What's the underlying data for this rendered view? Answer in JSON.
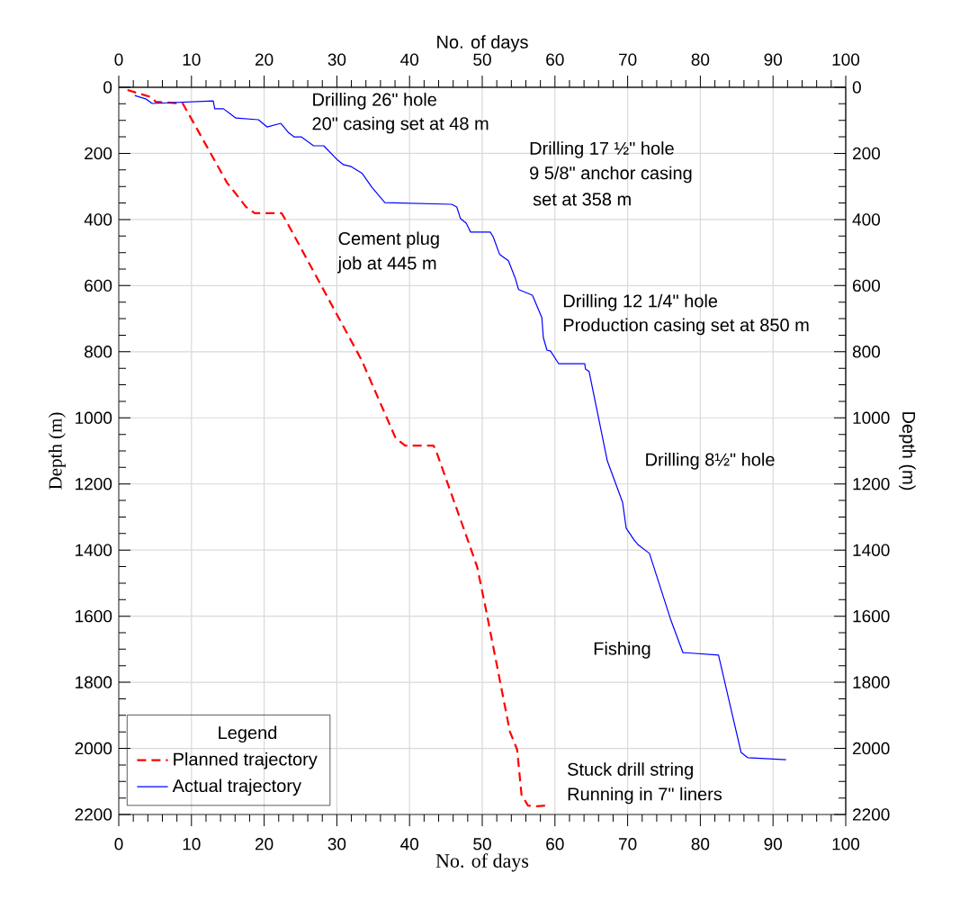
{
  "chart_data": {
    "type": "line",
    "xlabel": "No. of days",
    "x2label": "No. of days",
    "ylabel": "Depth (m)",
    "y2label": "Depth (m)",
    "xlim": [
      0,
      100
    ],
    "x2lim": [
      0,
      100
    ],
    "ylim": [
      2200,
      0
    ],
    "y2lim": [
      2200,
      0
    ],
    "xticks": [
      0,
      {
        "value": 2,
        "label": null
      },
      {
        "value": 4,
        "label": null
      },
      {
        "value": 6,
        "label": null
      },
      {
        "value": 8,
        "label": null
      },
      10,
      {
        "value": 12,
        "label": null
      },
      {
        "value": 14,
        "label": null
      },
      {
        "value": 16,
        "label": null
      },
      {
        "value": 18,
        "label": null
      },
      20,
      {
        "value": 22,
        "label": null
      },
      {
        "value": 24,
        "label": null
      },
      {
        "value": 26,
        "label": null
      },
      {
        "value": 28,
        "label": null
      },
      30,
      {
        "value": 32,
        "label": null
      },
      {
        "value": 34,
        "label": null
      },
      {
        "value": 36,
        "label": null
      },
      {
        "value": 38,
        "label": null
      },
      40,
      {
        "value": 42,
        "label": null
      },
      {
        "value": 44,
        "label": null
      },
      {
        "value": 46,
        "label": null
      },
      {
        "value": 48,
        "label": null
      },
      50,
      {
        "value": 52,
        "label": null
      },
      {
        "value": 54,
        "label": null
      },
      {
        "value": 56,
        "label": null
      },
      {
        "value": 58,
        "label": null
      },
      60,
      {
        "value": 62,
        "label": null
      },
      {
        "value": 64,
        "label": null
      },
      {
        "value": 66,
        "label": null
      },
      {
        "value": 68,
        "label": null
      },
      70,
      {
        "value": 72,
        "label": null
      },
      {
        "value": 74,
        "label": null
      },
      {
        "value": 76,
        "label": null
      },
      {
        "value": 78,
        "label": null
      },
      80,
      {
        "value": 82,
        "label": null
      },
      {
        "value": 84,
        "label": null
      },
      {
        "value": 86,
        "label": null
      },
      {
        "value": 88,
        "label": null
      },
      90,
      {
        "value": 92,
        "label": null
      },
      {
        "value": 94,
        "label": null
      },
      {
        "value": 96,
        "label": null
      },
      {
        "value": 98,
        "label": null
      },
      100
    ],
    "x2ticks": [
      0,
      {
        "value": 2,
        "label": null
      },
      {
        "value": 4,
        "label": null
      },
      {
        "value": 6,
        "label": null
      },
      {
        "value": 8,
        "label": null
      },
      10,
      {
        "value": 12,
        "label": null
      },
      {
        "value": 14,
        "label": null
      },
      {
        "value": 16,
        "label": null
      },
      {
        "value": 18,
        "label": null
      },
      20,
      {
        "value": 22,
        "label": null
      },
      {
        "value": 24,
        "label": null
      },
      {
        "value": 26,
        "label": null
      },
      {
        "value": 28,
        "label": null
      },
      30,
      {
        "value": 32,
        "label": null
      },
      {
        "value": 34,
        "label": null
      },
      {
        "value": 36,
        "label": null
      },
      {
        "value": 38,
        "label": null
      },
      40,
      {
        "value": 42,
        "label": null
      },
      {
        "value": 44,
        "label": null
      },
      {
        "value": 46,
        "label": null
      },
      {
        "value": 48,
        "label": null
      },
      50,
      {
        "value": 52,
        "label": null
      },
      {
        "value": 54,
        "label": null
      },
      {
        "value": 56,
        "label": null
      },
      {
        "value": 58,
        "label": null
      },
      60,
      {
        "value": 62,
        "label": null
      },
      {
        "value": 64,
        "label": null
      },
      {
        "value": 66,
        "label": null
      },
      {
        "value": 68,
        "label": null
      },
      70,
      {
        "value": 72,
        "label": null
      },
      {
        "value": 74,
        "label": null
      },
      {
        "value": 76,
        "label": null
      },
      {
        "value": 78,
        "label": null
      },
      80,
      {
        "value": 82,
        "label": null
      },
      {
        "value": 84,
        "label": null
      },
      {
        "value": 86,
        "label": null
      },
      {
        "value": 88,
        "label": null
      },
      90,
      {
        "value": 92,
        "label": null
      },
      {
        "value": 94,
        "label": null
      },
      {
        "value": 96,
        "label": null
      },
      {
        "value": 98,
        "label": null
      },
      100
    ],
    "yticks": [
      0,
      {
        "value": 50,
        "label": null
      },
      {
        "value": 100,
        "label": null
      },
      {
        "value": 150,
        "label": null
      },
      200,
      {
        "value": 250,
        "label": null
      },
      {
        "value": 300,
        "label": null
      },
      {
        "value": 350,
        "label": null
      },
      400,
      {
        "value": 450,
        "label": null
      },
      {
        "value": 500,
        "label": null
      },
      {
        "value": 550,
        "label": null
      },
      600,
      {
        "value": 650,
        "label": null
      },
      {
        "value": 700,
        "label": null
      },
      {
        "value": 750,
        "label": null
      },
      800,
      {
        "value": 850,
        "label": null
      },
      {
        "value": 900,
        "label": null
      },
      {
        "value": 950,
        "label": null
      },
      1000,
      {
        "value": 1050,
        "label": null
      },
      {
        "value": 1100,
        "label": null
      },
      {
        "value": 1150,
        "label": null
      },
      1200,
      {
        "value": 1250,
        "label": null
      },
      {
        "value": 1300,
        "label": null
      },
      {
        "value": 1350,
        "label": null
      },
      1400,
      {
        "value": 1450,
        "label": null
      },
      {
        "value": 1500,
        "label": null
      },
      {
        "value": 1550,
        "label": null
      },
      1600,
      {
        "value": 1650,
        "label": null
      },
      {
        "value": 1700,
        "label": null
      },
      {
        "value": 1750,
        "label": null
      },
      1800,
      {
        "value": 1850,
        "label": null
      },
      {
        "value": 1900,
        "label": null
      },
      {
        "value": 1950,
        "label": null
      },
      2000,
      {
        "value": 2050,
        "label": null
      },
      {
        "value": 2100,
        "label": null
      },
      {
        "value": 2150,
        "label": null
      },
      2200
    ],
    "y2ticks": [
      0,
      {
        "value": 50,
        "label": null
      },
      {
        "value": 100,
        "label": null
      },
      {
        "value": 150,
        "label": null
      },
      200,
      {
        "value": 250,
        "label": null
      },
      {
        "value": 300,
        "label": null
      },
      {
        "value": 350,
        "label": null
      },
      400,
      {
        "value": 450,
        "label": null
      },
      {
        "value": 500,
        "label": null
      },
      {
        "value": 550,
        "label": null
      },
      600,
      {
        "value": 650,
        "label": null
      },
      {
        "value": 700,
        "label": null
      },
      {
        "value": 750,
        "label": null
      },
      800,
      {
        "value": 850,
        "label": null
      },
      {
        "value": 900,
        "label": null
      },
      {
        "value": 950,
        "label": null
      },
      1000,
      {
        "value": 1050,
        "label": null
      },
      {
        "value": 1100,
        "label": null
      },
      {
        "value": 1150,
        "label": null
      },
      1200,
      {
        "value": 1250,
        "label": null
      },
      {
        "value": 1300,
        "label": null
      },
      {
        "value": 1350,
        "label": null
      },
      1400,
      {
        "value": 1450,
        "label": null
      },
      {
        "value": 1500,
        "label": null
      },
      {
        "value": 1550,
        "label": null
      },
      1600,
      {
        "value": 1650,
        "label": null
      },
      {
        "value": 1700,
        "label": null
      },
      {
        "value": 1750,
        "label": null
      },
      1800,
      {
        "value": 1850,
        "label": null
      },
      {
        "value": 1900,
        "label": null
      },
      {
        "value": 1950,
        "label": null
      },
      2000,
      {
        "value": 2050,
        "label": null
      },
      {
        "value": 2100,
        "label": null
      },
      {
        "value": 2150,
        "label": null
      },
      2200
    ],
    "grid": true,
    "legend": "bottom left",
    "legend_title": "Legend",
    "series": [
      {
        "name": "Planned trajectory",
        "color": "#ff0000",
        "line_style": "dashed",
        "x": [
          1.2,
          4.5,
          5.1,
          8.8,
          9.7,
          14.9,
          15.6,
          17.5,
          18.7,
          22.4,
          23.0,
          33.4,
          38.1,
          39.4,
          43.3,
          43.7,
          48.0,
          49.3,
          50.5,
          53.8,
          54.8,
          55.4,
          56.3,
          57.5,
          58.9
        ],
        "values": [
          8,
          30,
          44,
          49,
          84,
          289,
          308,
          362,
          381,
          381,
          403,
          825,
          1062,
          1084,
          1084,
          1103,
          1369,
          1451,
          1579,
          1949,
          2004,
          2140,
          2173,
          2175,
          2173
        ]
      },
      {
        "name": "Actual trajectory",
        "color": "#0000ff",
        "line_style": "solid",
        "x": [
          2.2,
          3.7,
          4.6,
          13.0,
          13.2,
          14.4,
          16.1,
          19.2,
          20.4,
          22.3,
          23.3,
          24.1,
          25.1,
          26.8,
          28.2,
          30.1,
          30.9,
          32.0,
          33.5,
          34.8,
          36.6,
          45.8,
          46.5,
          47.0,
          47.8,
          48.4,
          51.1,
          51.5,
          52.4,
          53.6,
          54.5,
          55.0,
          56.9,
          58.2,
          58.4,
          58.9,
          59.4,
          60.5,
          64.1,
          64.2,
          64.7,
          67.2,
          69.3,
          69.8,
          70.9,
          71.4,
          73.0,
          74.4,
          75.9,
          77.6,
          82.5,
          85.6,
          86.5,
          91.8
        ],
        "values": [
          25,
          35,
          49,
          41,
          65,
          65,
          93,
          98,
          120,
          109,
          136,
          150,
          150,
          177,
          177,
          220,
          234,
          240,
          261,
          302,
          349,
          354,
          362,
          397,
          411,
          438,
          438,
          452,
          506,
          525,
          575,
          612,
          629,
          697,
          757,
          795,
          798,
          836,
          836,
          852,
          860,
          1130,
          1255,
          1334,
          1370,
          1383,
          1410,
          1506,
          1609,
          1710,
          1718,
          2012,
          2028,
          2034
        ]
      }
    ],
    "annotations": [
      "Drilling 26\" hole",
      "20\" casing set at 48 m",
      "Drilling 17 ½\" hole",
      "9 5/8\" anchor casing",
      "set at  358 m",
      "Cement plug",
      "job at 445 m",
      "Drilling 12 1/4\" hole",
      "Production casing set at 850 m",
      "Drilling 8½\" hole",
      "Fishing",
      "Stuck drill string",
      "Running in 7\" liners"
    ]
  }
}
